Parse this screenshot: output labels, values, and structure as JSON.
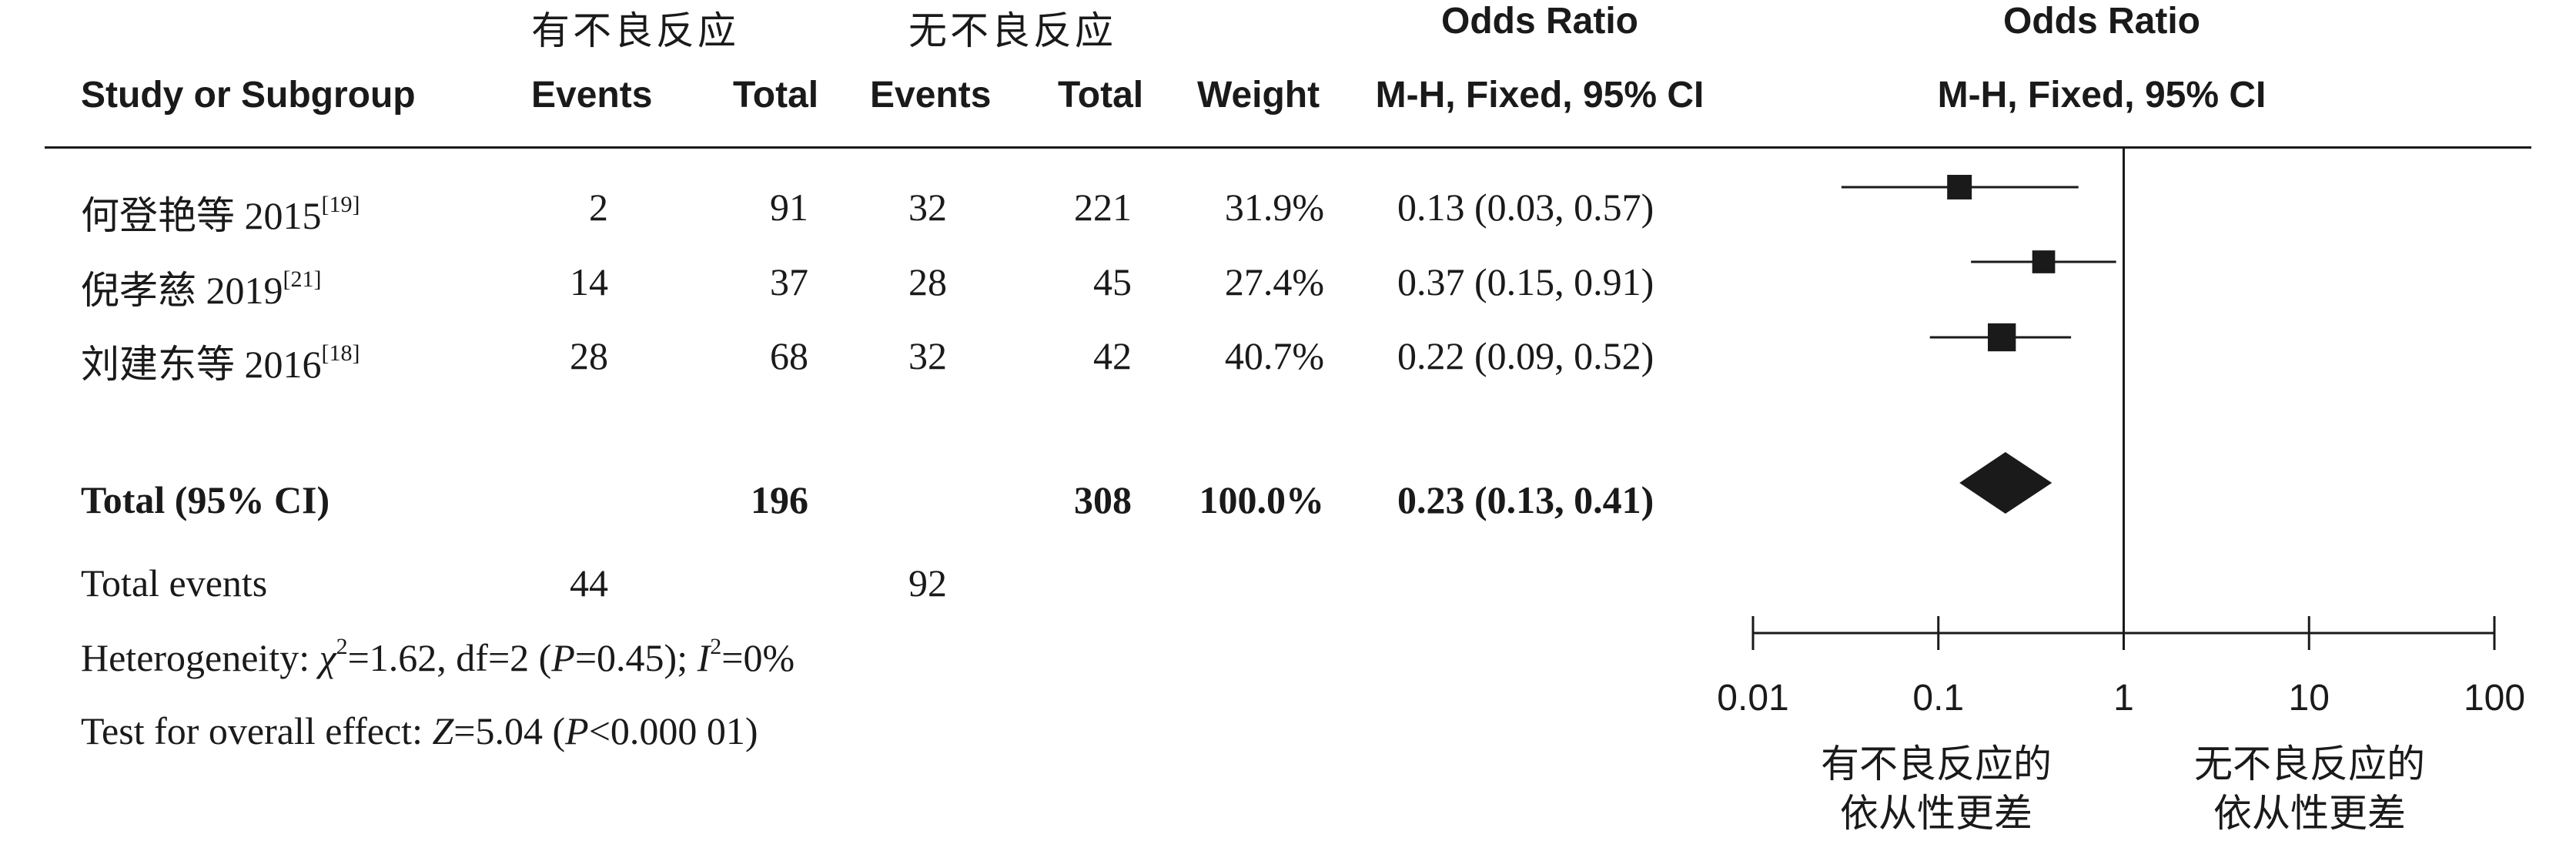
{
  "header": {
    "group1": "有不良反应",
    "group2": "无不良反应",
    "study_col": "Study or Subgroup",
    "events": "Events",
    "total": "Total",
    "weight": "Weight",
    "or_title": "Odds Ratio",
    "or_method": "M-H, Fixed, 95% CI"
  },
  "studies": [
    {
      "name": "何登艳等 2015",
      "ref": "[19]",
      "e1": "2",
      "t1": "91",
      "e2": "32",
      "t2": "221",
      "weight": "31.9%",
      "ci": "0.13 (0.03, 0.57)"
    },
    {
      "name": "倪孝慈 2019",
      "ref": "[21]",
      "e1": "14",
      "t1": "37",
      "e2": "28",
      "t2": "45",
      "weight": "27.4%",
      "ci": "0.37 (0.15, 0.91)"
    },
    {
      "name": "刘建东等 2016",
      "ref": "[18]",
      "e1": "28",
      "t1": "68",
      "e2": "32",
      "t2": "42",
      "weight": "40.7%",
      "ci": "0.22 (0.09, 0.52)"
    }
  ],
  "total": {
    "label": "Total (95% CI)",
    "t1": "196",
    "t2": "308",
    "weight": "100.0%",
    "ci": "0.23 (0.13, 0.41)"
  },
  "events": {
    "label": "Total events",
    "e1": "44",
    "e2": "92"
  },
  "heterogeneity": {
    "prefix": "Heterogeneity: ",
    "chi": "χ",
    "chi_sup": "2",
    "chi_val": "=1.62, df=2 (",
    "p": "P",
    "p_val": "=0.45); ",
    "i": "I",
    "i_sup": "2",
    "i_val": "=0%"
  },
  "overall": {
    "prefix": "Test for overall effect: ",
    "z": "Z",
    "z_val": "=5.04 (",
    "p": "P",
    "p_val": "<0.000 01)"
  },
  "favours": {
    "left": [
      "有不良反应的",
      "依从性更差"
    ],
    "right": [
      "无不良反应的",
      "依从性更差"
    ]
  },
  "chart_data": {
    "type": "scatter",
    "title": "Odds Ratio",
    "subtitle": "M-H, Fixed, 95% CI",
    "xscale": "log",
    "xlim": [
      0.01,
      100
    ],
    "xticks": [
      0.01,
      0.1,
      1,
      10,
      100
    ],
    "xtick_labels": [
      "0.01",
      "0.1",
      "1",
      "10",
      "100"
    ],
    "reference_line": 1,
    "points": [
      {
        "or": 0.13,
        "lo": 0.03,
        "hi": 0.57,
        "weight": 31.9
      },
      {
        "or": 0.37,
        "lo": 0.15,
        "hi": 0.91,
        "weight": 27.4
      },
      {
        "or": 0.22,
        "lo": 0.09,
        "hi": 0.52,
        "weight": 40.7
      }
    ],
    "pooled": {
      "or": 0.23,
      "lo": 0.13,
      "hi": 0.41
    },
    "grid": false
  }
}
